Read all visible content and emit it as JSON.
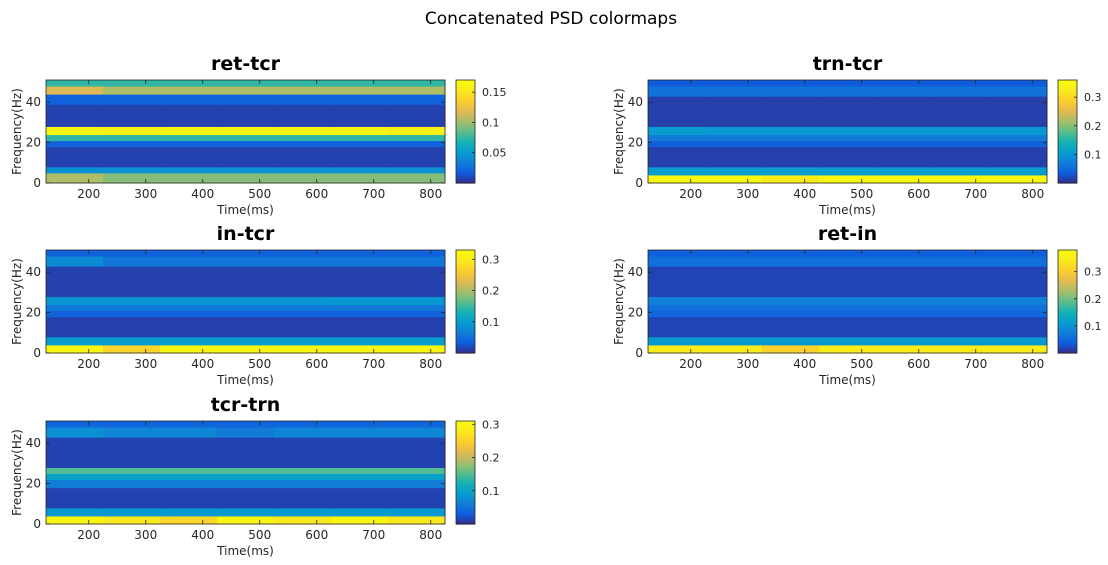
{
  "figure": {
    "title": "Concatenated PSD colormaps"
  },
  "chart_data": [
    {
      "type": "heatmap",
      "title": "ret-tcr",
      "xlabel": "Time(ms)",
      "ylabel": "Frequency(Hz)",
      "xlim": [
        125,
        825
      ],
      "ylim": [
        0,
        51
      ],
      "xticks": [
        200,
        300,
        400,
        500,
        600,
        700,
        800
      ],
      "yticks": [
        0,
        20,
        40
      ],
      "clim": [
        0,
        0.17
      ],
      "cticks": [
        0.05,
        0.1,
        0.15
      ],
      "x_bins": [
        175,
        275,
        375,
        475,
        575,
        675,
        775
      ],
      "freq_edges": [
        0,
        5,
        8,
        18,
        21,
        24,
        28,
        39,
        44,
        48,
        51
      ],
      "values": [
        [
          0.105,
          0.095,
          0.095,
          0.095,
          0.095,
          0.095,
          0.095
        ],
        [
          0.045,
          0.045,
          0.045,
          0.045,
          0.045,
          0.045,
          0.045
        ],
        [
          0.008,
          0.008,
          0.008,
          0.008,
          0.008,
          0.008,
          0.008
        ],
        [
          0.02,
          0.02,
          0.02,
          0.02,
          0.02,
          0.02,
          0.02
        ],
        [
          0.075,
          0.075,
          0.075,
          0.075,
          0.075,
          0.075,
          0.075
        ],
        [
          0.165,
          0.162,
          0.165,
          0.165,
          0.165,
          0.165,
          0.16
        ],
        [
          0.008,
          0.008,
          0.008,
          0.008,
          0.008,
          0.008,
          0.008
        ],
        [
          0.02,
          0.02,
          0.02,
          0.02,
          0.02,
          0.02,
          0.02
        ],
        [
          0.118,
          0.105,
          0.105,
          0.105,
          0.105,
          0.105,
          0.105
        ],
        [
          0.075,
          0.075,
          0.075,
          0.075,
          0.075,
          0.075,
          0.075
        ]
      ]
    },
    {
      "type": "heatmap",
      "title": "trn-tcr",
      "xlabel": "Time(ms)",
      "ylabel": "Frequency(Hz)",
      "xlim": [
        125,
        825
      ],
      "ylim": [
        0,
        51
      ],
      "xticks": [
        200,
        300,
        400,
        500,
        600,
        700,
        800
      ],
      "yticks": [
        0,
        20,
        40
      ],
      "clim": [
        0,
        0.36
      ],
      "cticks": [
        0.1,
        0.2,
        0.3
      ],
      "x_bins": [
        175,
        275,
        375,
        475,
        575,
        675,
        775
      ],
      "freq_edges": [
        0,
        4,
        8,
        18,
        21,
        24,
        28,
        43,
        48,
        51
      ],
      "values": [
        [
          0.35,
          0.35,
          0.33,
          0.35,
          0.35,
          0.35,
          0.35
        ],
        [
          0.11,
          0.11,
          0.11,
          0.11,
          0.11,
          0.11,
          0.11
        ],
        [
          0.015,
          0.015,
          0.015,
          0.015,
          0.015,
          0.015,
          0.015
        ],
        [
          0.04,
          0.04,
          0.04,
          0.04,
          0.04,
          0.04,
          0.04
        ],
        [
          0.07,
          0.07,
          0.07,
          0.07,
          0.07,
          0.07,
          0.07
        ],
        [
          0.11,
          0.105,
          0.105,
          0.105,
          0.105,
          0.105,
          0.105
        ],
        [
          0.015,
          0.015,
          0.015,
          0.015,
          0.015,
          0.015,
          0.015
        ],
        [
          0.06,
          0.06,
          0.06,
          0.06,
          0.06,
          0.06,
          0.06
        ],
        [
          0.035,
          0.035,
          0.035,
          0.035,
          0.035,
          0.035,
          0.035
        ]
      ]
    },
    {
      "type": "heatmap",
      "title": "in-tcr",
      "xlabel": "Time(ms)",
      "ylabel": "Frequency(Hz)",
      "xlim": [
        125,
        825
      ],
      "ylim": [
        0,
        51
      ],
      "xticks": [
        200,
        300,
        400,
        500,
        600,
        700,
        800
      ],
      "yticks": [
        0,
        20,
        40
      ],
      "clim": [
        0,
        0.33
      ],
      "cticks": [
        0.1,
        0.2,
        0.3
      ],
      "x_bins": [
        175,
        275,
        375,
        475,
        575,
        675,
        775
      ],
      "freq_edges": [
        0,
        4,
        8,
        18,
        21,
        24,
        28,
        43,
        48,
        51
      ],
      "values": [
        [
          0.32,
          0.27,
          0.32,
          0.32,
          0.32,
          0.32,
          0.32
        ],
        [
          0.1,
          0.1,
          0.1,
          0.1,
          0.1,
          0.1,
          0.1
        ],
        [
          0.015,
          0.015,
          0.015,
          0.015,
          0.015,
          0.015,
          0.015
        ],
        [
          0.04,
          0.04,
          0.04,
          0.04,
          0.04,
          0.04,
          0.04
        ],
        [
          0.06,
          0.06,
          0.06,
          0.06,
          0.06,
          0.06,
          0.06
        ],
        [
          0.09,
          0.09,
          0.09,
          0.09,
          0.09,
          0.095,
          0.095
        ],
        [
          0.015,
          0.015,
          0.015,
          0.015,
          0.015,
          0.015,
          0.015
        ],
        [
          0.08,
          0.06,
          0.06,
          0.06,
          0.06,
          0.06,
          0.06
        ],
        [
          0.04,
          0.04,
          0.04,
          0.04,
          0.04,
          0.04,
          0.04
        ]
      ]
    },
    {
      "type": "heatmap",
      "title": "ret-in",
      "xlabel": "Time(ms)",
      "ylabel": "Frequency(Hz)",
      "xlim": [
        125,
        825
      ],
      "ylim": [
        0,
        51
      ],
      "xticks": [
        200,
        300,
        400,
        500,
        600,
        700,
        800
      ],
      "yticks": [
        0,
        20,
        40
      ],
      "clim": [
        0,
        0.38
      ],
      "cticks": [
        0.1,
        0.2,
        0.3
      ],
      "x_bins": [
        175,
        275,
        375,
        475,
        575,
        675,
        775
      ],
      "freq_edges": [
        0,
        4,
        8,
        18,
        21,
        24,
        28,
        43,
        48,
        51
      ],
      "values": [
        [
          0.35,
          0.35,
          0.31,
          0.35,
          0.35,
          0.35,
          0.35
        ],
        [
          0.11,
          0.11,
          0.11,
          0.11,
          0.11,
          0.11,
          0.11
        ],
        [
          0.02,
          0.02,
          0.02,
          0.02,
          0.02,
          0.02,
          0.02
        ],
        [
          0.05,
          0.05,
          0.05,
          0.05,
          0.05,
          0.05,
          0.05
        ],
        [
          0.06,
          0.06,
          0.06,
          0.06,
          0.06,
          0.06,
          0.06
        ],
        [
          0.08,
          0.08,
          0.08,
          0.08,
          0.08,
          0.08,
          0.08
        ],
        [
          0.02,
          0.02,
          0.02,
          0.02,
          0.02,
          0.02,
          0.02
        ],
        [
          0.06,
          0.06,
          0.06,
          0.06,
          0.06,
          0.06,
          0.06
        ],
        [
          0.04,
          0.04,
          0.04,
          0.04,
          0.04,
          0.04,
          0.04
        ]
      ]
    },
    {
      "type": "heatmap",
      "title": "tcr-trn",
      "xlabel": "Time(ms)",
      "ylabel": "Frequency(Hz)",
      "xlim": [
        125,
        825
      ],
      "ylim": [
        0,
        51
      ],
      "xticks": [
        200,
        300,
        400,
        500,
        600,
        700,
        800
      ],
      "yticks": [
        0,
        20,
        40
      ],
      "clim": [
        0,
        0.31
      ],
      "cticks": [
        0.1,
        0.2,
        0.3
      ],
      "x_bins": [
        175,
        275,
        375,
        475,
        575,
        675,
        775
      ],
      "freq_edges": [
        0,
        4,
        8,
        18,
        22,
        25,
        28,
        43,
        48,
        51
      ],
      "values": [
        [
          0.3,
          0.28,
          0.26,
          0.3,
          0.28,
          0.3,
          0.28
        ],
        [
          0.09,
          0.09,
          0.09,
          0.09,
          0.09,
          0.09,
          0.09
        ],
        [
          0.015,
          0.015,
          0.015,
          0.015,
          0.015,
          0.015,
          0.015
        ],
        [
          0.06,
          0.06,
          0.06,
          0.06,
          0.06,
          0.06,
          0.06
        ],
        [
          0.1,
          0.1,
          0.1,
          0.1,
          0.1,
          0.1,
          0.1
        ],
        [
          0.15,
          0.15,
          0.15,
          0.15,
          0.15,
          0.15,
          0.15
        ],
        [
          0.015,
          0.015,
          0.015,
          0.015,
          0.015,
          0.015,
          0.015
        ],
        [
          0.08,
          0.07,
          0.07,
          0.06,
          0.07,
          0.07,
          0.07
        ],
        [
          0.04,
          0.04,
          0.04,
          0.04,
          0.04,
          0.04,
          0.04
        ]
      ]
    }
  ]
}
